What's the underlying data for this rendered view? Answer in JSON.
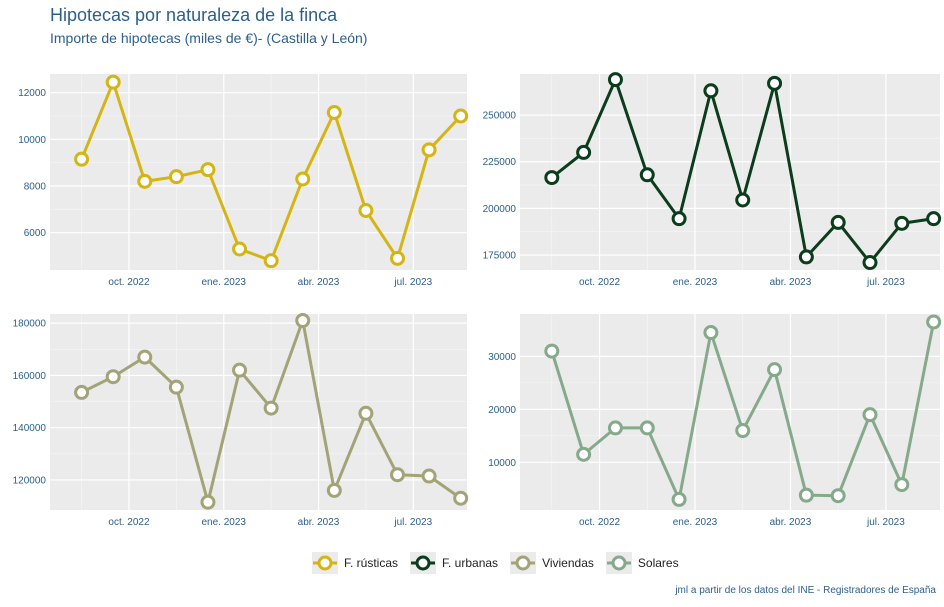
{
  "title": "Hipotecas por naturaleza de la finca",
  "subtitle": "Importe de hipotecas (miles de €)- (Castilla y León)",
  "caption": "jml a partir de los datos del INE - Registradores de España",
  "x_tick_labels": [
    "oct. 2022",
    "ene. 2023",
    "abr. 2023",
    "jul. 2023"
  ],
  "chart_data": [
    {
      "type": "line",
      "series": [
        {
          "name": "F. rústicas",
          "color": "#d4b514",
          "x": [
            "2022-08",
            "2022-09",
            "2022-10",
            "2022-11",
            "2022-12",
            "2023-01",
            "2023-02",
            "2023-03",
            "2023-04",
            "2023-05",
            "2023-06",
            "2023-07",
            "2023-08"
          ],
          "values": [
            9150,
            12450,
            8200,
            8400,
            8700,
            5300,
            4800,
            8300,
            11150,
            6950,
            4900,
            9550,
            11000
          ]
        }
      ],
      "ylim": [
        4400,
        12800
      ],
      "yticks": [
        6000,
        8000,
        10000,
        12000
      ],
      "ytick_labels": [
        "6000",
        "8000",
        "10000",
        "12000"
      ]
    },
    {
      "type": "line",
      "series": [
        {
          "name": "F. urbanas",
          "color": "#0b3d1c",
          "x": [
            "2022-08",
            "2022-09",
            "2022-10",
            "2022-11",
            "2022-12",
            "2023-01",
            "2023-02",
            "2023-03",
            "2023-04",
            "2023-05",
            "2023-06",
            "2023-07",
            "2023-08"
          ],
          "values": [
            216500,
            230000,
            269000,
            218000,
            194500,
            263000,
            204500,
            267000,
            174000,
            192500,
            171000,
            192000,
            194500
          ]
        }
      ],
      "ylim": [
        167000,
        272000
      ],
      "yticks": [
        175000,
        200000,
        225000,
        250000
      ],
      "ytick_labels": [
        "175000",
        "200000",
        "225000",
        "250000"
      ]
    },
    {
      "type": "line",
      "series": [
        {
          "name": "Viviendas",
          "color": "#a3a378",
          "x": [
            "2022-08",
            "2022-09",
            "2022-10",
            "2022-11",
            "2022-12",
            "2023-01",
            "2023-02",
            "2023-03",
            "2023-04",
            "2023-05",
            "2023-06",
            "2023-07",
            "2023-08"
          ],
          "values": [
            153500,
            159500,
            167000,
            155500,
            111500,
            162000,
            147500,
            181000,
            116000,
            145500,
            122000,
            121500,
            113000
          ]
        }
      ],
      "ylim": [
        108500,
        183500
      ],
      "yticks": [
        120000,
        140000,
        160000,
        180000
      ],
      "ytick_labels": [
        "120000",
        "140000",
        "160000",
        "180000"
      ]
    },
    {
      "type": "line",
      "series": [
        {
          "name": "Solares",
          "color": "#86a98b",
          "x": [
            "2022-08",
            "2022-09",
            "2022-10",
            "2022-11",
            "2022-12",
            "2023-01",
            "2023-02",
            "2023-03",
            "2023-04",
            "2023-05",
            "2023-06",
            "2023-07",
            "2023-08"
          ],
          "values": [
            31000,
            11500,
            16500,
            16500,
            3000,
            34500,
            16000,
            27500,
            3800,
            3700,
            19000,
            5800,
            36500
          ]
        }
      ],
      "ylim": [
        1000,
        38000
      ],
      "yticks": [
        10000,
        20000,
        30000
      ],
      "ytick_labels": [
        "10000",
        "20000",
        "30000"
      ]
    }
  ]
}
